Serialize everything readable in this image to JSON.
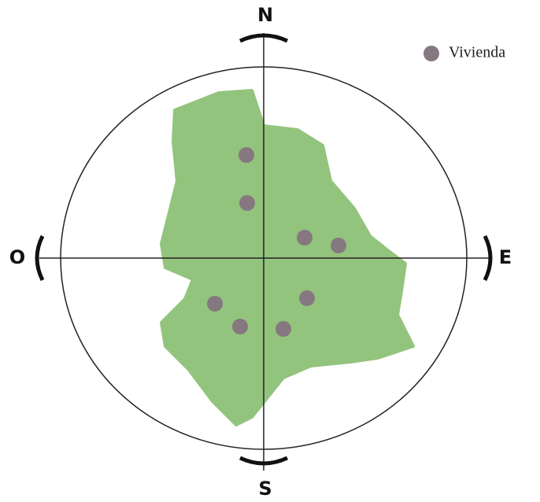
{
  "compass": {
    "north": "N",
    "south": "S",
    "east": "E",
    "west": "O"
  },
  "legend": {
    "label": "Vivienda"
  }
}
